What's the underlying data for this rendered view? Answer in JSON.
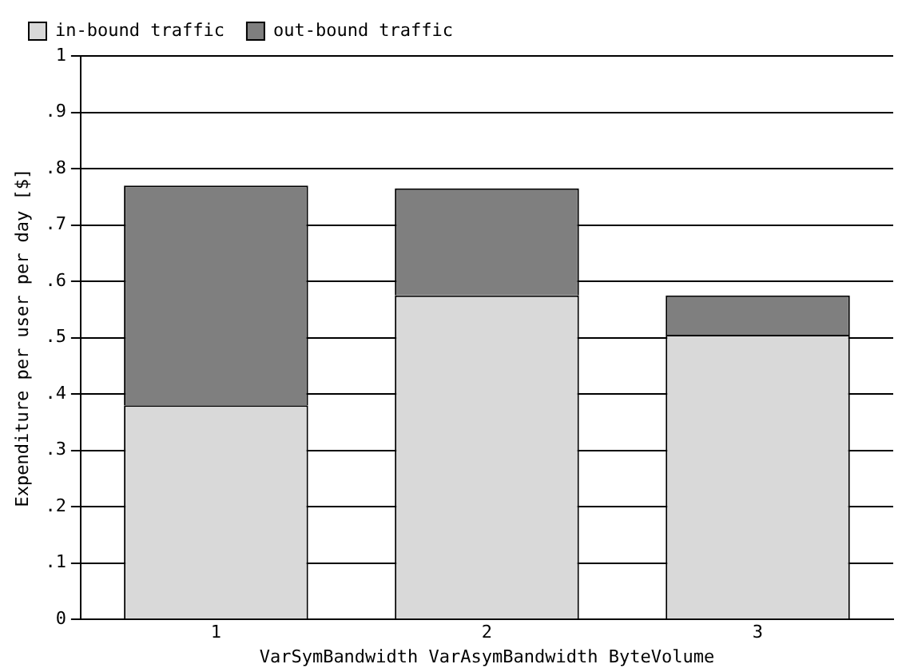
{
  "chart_data": {
    "type": "bar",
    "stacked": true,
    "categories": [
      "1",
      "2",
      "3"
    ],
    "xlabel": "VarSymBandwidth VarAsymBandwidth ByteVolume",
    "ylabel": "Expenditure per user per day [$]",
    "series": [
      {
        "name": "in-bound traffic",
        "color": "#d9d9d9",
        "values": [
          0.38,
          0.575,
          0.505
        ]
      },
      {
        "name": "out-bound traffic",
        "color": "#7f7f7f",
        "values": [
          0.39,
          0.19,
          0.07
        ]
      }
    ],
    "ylim": [
      0,
      1
    ],
    "yticks": [
      0,
      {
        "value": 0.1,
        "label": ".1"
      },
      {
        "value": 0.2,
        "label": ".2"
      },
      {
        "value": 0.3,
        "label": ".3"
      },
      {
        "value": 0.4,
        "label": ".4"
      },
      {
        "value": 0.5,
        "label": ".5"
      },
      {
        "value": 0.6,
        "label": ".6"
      },
      {
        "value": 0.7,
        "label": ".7"
      },
      {
        "value": 0.8,
        "label": ".8"
      },
      {
        "value": 0.9,
        "label": ".9"
      },
      1
    ],
    "grid": "y",
    "legend": "top"
  }
}
